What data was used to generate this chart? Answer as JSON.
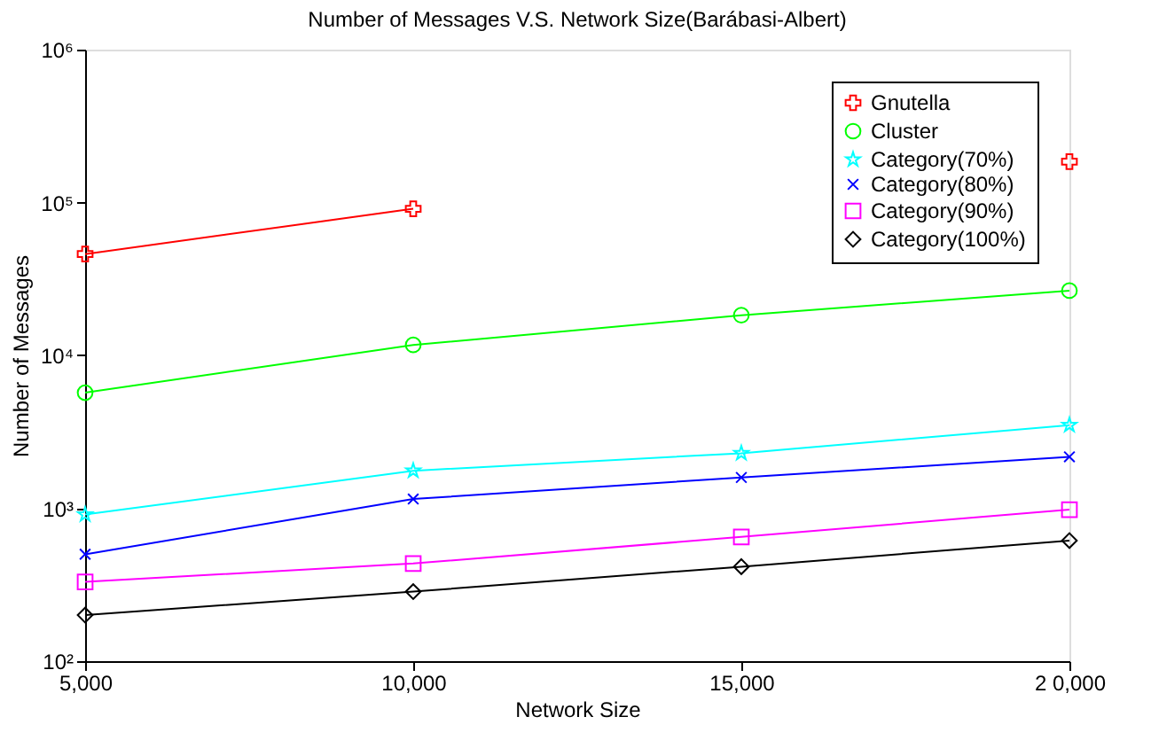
{
  "chart_data": {
    "type": "line",
    "title": "Number of Messages V.S. Network Size(Barábasi-Albert)",
    "xlabel": "Network Size",
    "ylabel": "Number of Messages",
    "x": [
      5000,
      10000,
      15000,
      20000
    ],
    "series": [
      {
        "name": "Gnutella",
        "color": "#ff0000",
        "marker": "plus",
        "values": [
          46000,
          91000,
          null,
          185000
        ]
      },
      {
        "name": "Cluster",
        "color": "#00ff00",
        "marker": "circle",
        "values": [
          5700,
          11700,
          18300,
          26500
        ]
      },
      {
        "name": "Category(70%)",
        "color": "#00ffff",
        "marker": "star",
        "values": [
          910,
          1760,
          2290,
          3500
        ]
      },
      {
        "name": "Category(80%)",
        "color": "#0000ff",
        "marker": "cross",
        "values": [
          500,
          1150,
          1590,
          2170
        ]
      },
      {
        "name": "Category(90%)",
        "color": "#ff00ff",
        "marker": "square",
        "values": [
          330,
          435,
          650,
          980
        ]
      },
      {
        "name": "Category(100%)",
        "color": "#000000",
        "marker": "diamond",
        "values": [
          200,
          285,
          415,
          615
        ]
      }
    ],
    "log": "y",
    "xlim": [
      5000,
      20000
    ],
    "ylim": [
      100,
      1000000
    ],
    "xticks": [
      {
        "value": 5000,
        "label": "5,000"
      },
      {
        "value": 10000,
        "label": "10,000"
      },
      {
        "value": 15000,
        "label": "15,000"
      },
      {
        "value": 20000,
        "label": "2 0,000"
      }
    ],
    "yticks": [
      {
        "value": 100,
        "label": "10²"
      },
      {
        "value": 1000,
        "label": "10³"
      },
      {
        "value": 10000,
        "label": "10⁴"
      },
      {
        "value": 100000,
        "label": "10⁵"
      },
      {
        "value": 1000000,
        "label": "10⁶"
      }
    ],
    "grid": false,
    "legend": "top right",
    "line_style": "solid"
  }
}
